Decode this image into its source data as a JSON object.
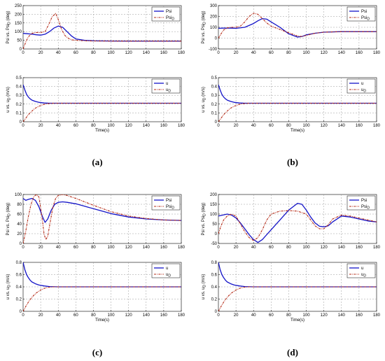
{
  "figure": {
    "captions": [
      "(a)",
      "(b)",
      "(c)",
      "(d)"
    ]
  },
  "colors": {
    "actual": "#1414c8",
    "desired": "#b42814",
    "grid": "#9a9a9a"
  },
  "chart_data": [
    {
      "panel": "a",
      "subplot": "top",
      "type": "line",
      "ylabel": "Psi vs. Psi_D (deg)",
      "xlim": [
        0,
        180
      ],
      "ylim": [
        0,
        250
      ],
      "xticks": [
        0,
        20,
        40,
        60,
        80,
        100,
        120,
        140,
        160,
        180
      ],
      "yticks": [
        0,
        50,
        100,
        150,
        200,
        250
      ],
      "grid": true,
      "legend": "top-right",
      "series": [
        {
          "name": "Psi",
          "style": "solid-blue",
          "x": [
            0,
            5,
            10,
            15,
            20,
            25,
            30,
            35,
            40,
            45,
            50,
            55,
            60,
            70,
            80,
            100,
            120,
            140,
            160,
            180
          ],
          "y": [
            90,
            88,
            85,
            82,
            80,
            85,
            100,
            120,
            132,
            125,
            100,
            75,
            58,
            50,
            47,
            46,
            45,
            45,
            45,
            45
          ]
        },
        {
          "name": "Psi_D",
          "style": "dashdot-red",
          "x": [
            0,
            3,
            6,
            10,
            15,
            20,
            25,
            30,
            33,
            37,
            40,
            44,
            48,
            52,
            56,
            60,
            70,
            80,
            100,
            120,
            140,
            160,
            180
          ],
          "y": [
            0,
            40,
            70,
            90,
            95,
            95,
            100,
            150,
            185,
            205,
            170,
            110,
            75,
            60,
            52,
            50,
            47,
            46,
            45,
            45,
            45,
            45,
            45
          ]
        }
      ]
    },
    {
      "panel": "a",
      "subplot": "bottom",
      "type": "line",
      "ylabel": "u vs. u_D (m/s)",
      "xlabel": "Time(s)",
      "xlim": [
        0,
        180
      ],
      "ylim": [
        0,
        0.5
      ],
      "xticks": [
        0,
        20,
        40,
        60,
        80,
        100,
        120,
        140,
        160,
        180
      ],
      "yticks": [
        0,
        0.1,
        0.2,
        0.3,
        0.4,
        0.5
      ],
      "grid": true,
      "legend": "top-right",
      "series": [
        {
          "name": "u",
          "style": "solid-blue",
          "x": [
            0,
            2,
            4,
            6,
            8,
            10,
            14,
            18,
            24,
            30,
            40,
            60,
            100,
            140,
            180
          ],
          "y": [
            0.42,
            0.36,
            0.31,
            0.28,
            0.26,
            0.245,
            0.23,
            0.22,
            0.213,
            0.21,
            0.21,
            0.21,
            0.21,
            0.21,
            0.21
          ]
        },
        {
          "name": "u_D",
          "style": "dashdot-red",
          "x": [
            0,
            3,
            6,
            9,
            12,
            15,
            20,
            25,
            30,
            35,
            40,
            60,
            100,
            140,
            180
          ],
          "y": [
            0,
            0.04,
            0.08,
            0.11,
            0.14,
            0.16,
            0.185,
            0.2,
            0.207,
            0.21,
            0.21,
            0.21,
            0.21,
            0.21,
            0.21
          ]
        }
      ]
    },
    {
      "panel": "b",
      "subplot": "top",
      "type": "line",
      "ylabel": "Psi vs. Psi_D (deg)",
      "xlim": [
        0,
        180
      ],
      "ylim": [
        -100,
        300
      ],
      "xticks": [
        0,
        20,
        40,
        60,
        80,
        100,
        120,
        140,
        160,
        180
      ],
      "yticks": [
        -100,
        0,
        100,
        200,
        300
      ],
      "grid": true,
      "legend": "top-right",
      "series": [
        {
          "name": "Psi",
          "style": "solid-blue",
          "x": [
            0,
            5,
            10,
            15,
            20,
            30,
            40,
            45,
            50,
            55,
            60,
            70,
            80,
            90,
            95,
            100,
            110,
            120,
            140,
            160,
            180
          ],
          "y": [
            90,
            92,
            93,
            92,
            90,
            100,
            135,
            160,
            180,
            175,
            150,
            100,
            40,
            10,
            15,
            30,
            45,
            55,
            60,
            60,
            60
          ]
        },
        {
          "name": "Psi_D",
          "style": "dashdot-red",
          "x": [
            0,
            3,
            6,
            10,
            15,
            20,
            25,
            30,
            35,
            40,
            45,
            50,
            55,
            60,
            70,
            80,
            90,
            95,
            100,
            110,
            120,
            140,
            160,
            180
          ],
          "y": [
            0,
            40,
            75,
            95,
            100,
            100,
            110,
            150,
            200,
            230,
            220,
            180,
            140,
            110,
            80,
            50,
            20,
            15,
            25,
            45,
            55,
            60,
            60,
            60
          ]
        }
      ]
    },
    {
      "panel": "b",
      "subplot": "bottom",
      "type": "line",
      "ylabel": "u vs. u_D (m/s)",
      "xlabel": "Time(s)",
      "xlim": [
        0,
        180
      ],
      "ylim": [
        0,
        0.5
      ],
      "xticks": [
        0,
        20,
        40,
        60,
        80,
        100,
        120,
        140,
        160,
        180
      ],
      "yticks": [
        0,
        0.1,
        0.2,
        0.3,
        0.4,
        0.5
      ],
      "grid": true,
      "legend": "top-right",
      "series": [
        {
          "name": "u",
          "style": "solid-blue",
          "x": [
            0,
            2,
            4,
            6,
            8,
            10,
            14,
            18,
            24,
            30,
            40,
            60,
            100,
            140,
            180
          ],
          "y": [
            0.42,
            0.36,
            0.31,
            0.28,
            0.26,
            0.245,
            0.23,
            0.22,
            0.213,
            0.21,
            0.21,
            0.21,
            0.21,
            0.21,
            0.21
          ]
        },
        {
          "name": "u_D",
          "style": "dashdot-red",
          "x": [
            0,
            3,
            6,
            9,
            12,
            15,
            20,
            25,
            30,
            35,
            40,
            60,
            100,
            140,
            180
          ],
          "y": [
            0,
            0.04,
            0.08,
            0.11,
            0.14,
            0.16,
            0.185,
            0.2,
            0.207,
            0.21,
            0.21,
            0.21,
            0.21,
            0.21,
            0.21
          ]
        }
      ]
    },
    {
      "panel": "c",
      "subplot": "top",
      "type": "line",
      "ylabel": "Psi vs. Psi_D (deg)",
      "xlim": [
        0,
        180
      ],
      "ylim": [
        0,
        100
      ],
      "xticks": [
        0,
        20,
        40,
        60,
        80,
        100,
        120,
        140,
        160,
        180
      ],
      "yticks": [
        0,
        20,
        40,
        60,
        80,
        100
      ],
      "grid": true,
      "legend": "top-right",
      "series": [
        {
          "name": "Psi",
          "style": "solid-blue",
          "x": [
            0,
            3,
            6,
            10,
            14,
            18,
            22,
            25,
            28,
            32,
            36,
            40,
            45,
            50,
            60,
            70,
            80,
            90,
            100,
            120,
            140,
            160,
            180
          ],
          "y": [
            92,
            88,
            90,
            92,
            88,
            75,
            55,
            43,
            50,
            68,
            80,
            84,
            85,
            84,
            81,
            76,
            71,
            66,
            61,
            54,
            50,
            48,
            47
          ]
        },
        {
          "name": "Psi_D",
          "style": "dashdot-red",
          "x": [
            0,
            3,
            6,
            9,
            12,
            15,
            18,
            21,
            24,
            26,
            28,
            31,
            34,
            37,
            40,
            45,
            50,
            60,
            70,
            80,
            100,
            120,
            140,
            160,
            180
          ],
          "y": [
            0,
            25,
            55,
            80,
            95,
            100,
            95,
            60,
            18,
            8,
            15,
            45,
            75,
            92,
            98,
            100,
            98,
            92,
            85,
            78,
            65,
            56,
            51,
            48,
            47
          ]
        }
      ]
    },
    {
      "panel": "c",
      "subplot": "bottom",
      "type": "line",
      "ylabel": "u vs. u_D (m/s)",
      "xlabel": "Time(s)",
      "xlim": [
        0,
        180
      ],
      "ylim": [
        0,
        0.8
      ],
      "xticks": [
        0,
        20,
        40,
        60,
        80,
        100,
        120,
        140,
        160,
        180
      ],
      "yticks": [
        0,
        0.2,
        0.4,
        0.6,
        0.8
      ],
      "grid": true,
      "legend": "top-right",
      "series": [
        {
          "name": "u",
          "style": "solid-blue",
          "x": [
            0,
            2,
            4,
            6,
            8,
            10,
            14,
            18,
            24,
            30,
            40,
            50,
            100,
            140,
            180
          ],
          "y": [
            0.8,
            0.68,
            0.6,
            0.55,
            0.51,
            0.48,
            0.45,
            0.43,
            0.415,
            0.405,
            0.4,
            0.4,
            0.4,
            0.4,
            0.4
          ]
        },
        {
          "name": "u_D",
          "style": "dashdot-red",
          "x": [
            0,
            3,
            6,
            9,
            12,
            15,
            20,
            25,
            30,
            35,
            40,
            60,
            100,
            140,
            180
          ],
          "y": [
            0,
            0.08,
            0.15,
            0.21,
            0.26,
            0.3,
            0.35,
            0.38,
            0.395,
            0.4,
            0.4,
            0.4,
            0.4,
            0.4,
            0.4
          ]
        }
      ]
    },
    {
      "panel": "d",
      "subplot": "top",
      "type": "line",
      "ylabel": "Psi vs. Psi_D (deg)",
      "xlim": [
        0,
        180
      ],
      "ylim": [
        -50,
        200
      ],
      "xticks": [
        0,
        20,
        40,
        60,
        80,
        100,
        120,
        140,
        160,
        180
      ],
      "yticks": [
        -50,
        0,
        50,
        100,
        150,
        200
      ],
      "grid": true,
      "legend": "top-right",
      "series": [
        {
          "name": "Psi",
          "style": "solid-blue",
          "x": [
            0,
            5,
            10,
            15,
            20,
            25,
            30,
            35,
            40,
            45,
            50,
            60,
            70,
            80,
            90,
            95,
            100,
            105,
            110,
            115,
            120,
            125,
            130,
            140,
            150,
            160,
            170,
            180
          ],
          "y": [
            90,
            95,
            100,
            95,
            80,
            55,
            25,
            -5,
            -30,
            -45,
            -30,
            20,
            70,
            120,
            155,
            150,
            120,
            85,
            55,
            38,
            35,
            40,
            60,
            90,
            85,
            75,
            65,
            60
          ]
        },
        {
          "name": "Psi_D",
          "style": "dashdot-red",
          "x": [
            0,
            3,
            6,
            10,
            15,
            20,
            25,
            30,
            35,
            40,
            45,
            50,
            55,
            60,
            70,
            80,
            90,
            100,
            105,
            110,
            115,
            120,
            125,
            130,
            140,
            150,
            160,
            170,
            180
          ],
          "y": [
            0,
            40,
            70,
            90,
            100,
            90,
            50,
            10,
            -20,
            -35,
            -20,
            20,
            70,
            100,
            115,
            118,
            115,
            100,
            70,
            40,
            25,
            25,
            45,
            75,
            95,
            90,
            80,
            70,
            60
          ]
        }
      ]
    },
    {
      "panel": "d",
      "subplot": "bottom",
      "type": "line",
      "ylabel": "u vs. u_D (m/s)",
      "xlabel": "Time(s)",
      "xlim": [
        0,
        180
      ],
      "ylim": [
        0,
        0.8
      ],
      "xticks": [
        0,
        20,
        40,
        60,
        80,
        100,
        120,
        140,
        160,
        180
      ],
      "yticks": [
        0,
        0.2,
        0.4,
        0.6,
        0.8
      ],
      "grid": true,
      "legend": "top-right",
      "series": [
        {
          "name": "u",
          "style": "solid-blue",
          "x": [
            0,
            2,
            4,
            6,
            8,
            10,
            14,
            18,
            24,
            30,
            40,
            50,
            100,
            140,
            180
          ],
          "y": [
            0.8,
            0.68,
            0.6,
            0.55,
            0.51,
            0.48,
            0.45,
            0.43,
            0.415,
            0.405,
            0.4,
            0.4,
            0.4,
            0.4,
            0.4
          ]
        },
        {
          "name": "u_D",
          "style": "dashdot-red",
          "x": [
            0,
            3,
            6,
            9,
            12,
            15,
            20,
            25,
            30,
            35,
            40,
            60,
            100,
            140,
            180
          ],
          "y": [
            0,
            0.08,
            0.15,
            0.21,
            0.26,
            0.3,
            0.35,
            0.38,
            0.395,
            0.4,
            0.4,
            0.4,
            0.4,
            0.4,
            0.4
          ]
        }
      ]
    }
  ]
}
